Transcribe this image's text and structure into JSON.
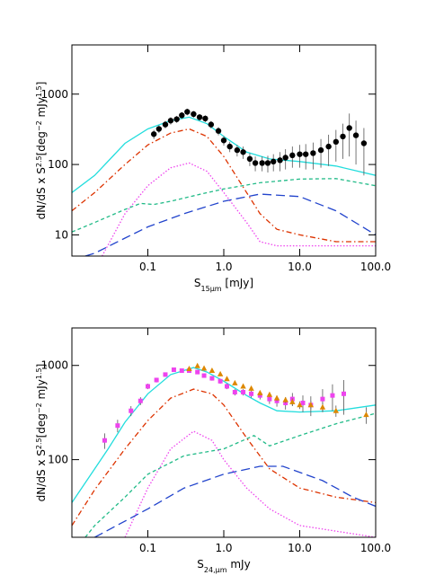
{
  "chart_data": [
    {
      "type": "line",
      "xlabel_parts": [
        {
          "text": "S"
        },
        {
          "text": "15μm",
          "sub": true
        },
        {
          "text": " [mJy]"
        }
      ],
      "ylabel_parts": [
        {
          "text": "dN/dS x S"
        },
        {
          "text": "2.5",
          "sup": true
        },
        {
          "text": "[deg"
        },
        {
          "text": "−2",
          "sup": true
        },
        {
          "text": " mJy"
        },
        {
          "text": "1.5",
          "sup": true
        },
        {
          "text": "]"
        }
      ],
      "xlog": true,
      "ylog": true,
      "xlim": [
        0.01,
        100
      ],
      "ylim": [
        5,
        5000
      ],
      "xticks": [
        0.1,
        {
          "value": 1,
          "label": "1.0"
        },
        {
          "value": 10,
          "label": "10.0"
        },
        {
          "value": 100,
          "label": "100.0"
        }
      ],
      "yticks": [
        10,
        100,
        1000
      ],
      "series": [
        {
          "color": "#22dddd",
          "style": "solid",
          "x": [
            0.01,
            0.02,
            0.05,
            0.1,
            0.2,
            0.35,
            0.6,
            1,
            2,
            4,
            10,
            30,
            100
          ],
          "values": [
            40,
            70,
            200,
            320,
            420,
            470,
            380,
            250,
            150,
            120,
            110,
            95,
            70
          ]
        },
        {
          "color": "#dd3300",
          "style": "dashdot",
          "x": [
            0.01,
            0.02,
            0.05,
            0.1,
            0.2,
            0.35,
            0.6,
            1,
            2,
            3,
            5,
            10,
            30,
            100
          ],
          "values": [
            22,
            40,
            100,
            190,
            280,
            320,
            250,
            130,
            40,
            20,
            12,
            10,
            8,
            8
          ]
        },
        {
          "color": "#ee44ee",
          "style": "dotted",
          "x": [
            0.025,
            0.05,
            0.1,
            0.2,
            0.35,
            0.6,
            1,
            2,
            3,
            5,
            20,
            100
          ],
          "values": [
            5,
            20,
            50,
            90,
            105,
            80,
            40,
            15,
            8,
            7,
            7,
            7
          ]
        },
        {
          "color": "#22bb88",
          "style": "dashed",
          "x": [
            0.01,
            0.02,
            0.05,
            0.08,
            0.12,
            0.2,
            0.5,
            1,
            3,
            10,
            30,
            100
          ],
          "values": [
            11,
            15,
            23,
            28,
            27,
            30,
            38,
            45,
            55,
            62,
            63,
            50
          ]
        },
        {
          "color": "#2244cc",
          "style": "longdash",
          "x": [
            0.015,
            0.02,
            0.05,
            0.1,
            0.3,
            1,
            3,
            10,
            30,
            100
          ],
          "values": [
            5,
            5.5,
            9,
            13,
            20,
            30,
            38,
            35,
            22,
            10
          ]
        },
        {
          "color": "#000000",
          "marker": "circle",
          "x": [
            0.12,
            0.14,
            0.17,
            0.2,
            0.24,
            0.28,
            0.33,
            0.4,
            0.48,
            0.57,
            0.68,
            0.85,
            1.0,
            1.2,
            1.5,
            1.8,
            2.2,
            2.6,
            3.2,
            3.8,
            4.5,
            5.5,
            6.5,
            8,
            10,
            12,
            15,
            19,
            24,
            30,
            37,
            45,
            55,
            70
          ],
          "values": [
            270,
            320,
            370,
            420,
            440,
            500,
            560,
            520,
            470,
            450,
            370,
            300,
            220,
            180,
            160,
            150,
            120,
            105,
            105,
            105,
            110,
            115,
            125,
            135,
            140,
            140,
            145,
            160,
            180,
            210,
            250,
            330,
            260,
            200
          ],
          "errors": [
            40,
            40,
            45,
            50,
            50,
            55,
            60,
            55,
            50,
            50,
            45,
            40,
            35,
            30,
            30,
            30,
            25,
            25,
            25,
            28,
            30,
            35,
            40,
            45,
            50,
            55,
            60,
            70,
            85,
            100,
            130,
            200,
            160,
            130
          ]
        }
      ]
    },
    {
      "type": "line",
      "xlabel_parts": [
        {
          "text": "S"
        },
        {
          "text": "24,μm",
          "sub": true
        },
        {
          "text": " mJy"
        }
      ],
      "ylabel_parts": [
        {
          "text": "dN/dS x S"
        },
        {
          "text": "2.5",
          "sup": true
        },
        {
          "text": "[deg"
        },
        {
          "text": "−2",
          "sup": true
        },
        {
          "text": " mJy"
        },
        {
          "text": "1.5",
          "sup": true
        },
        {
          "text": "]"
        }
      ],
      "xlog": true,
      "ylog": true,
      "xlim": [
        0.01,
        100
      ],
      "ylim": [
        15,
        2500
      ],
      "xticks": [
        0.1,
        {
          "value": 1,
          "label": "1.0"
        },
        {
          "value": 10,
          "label": "10.0"
        },
        {
          "value": 100,
          "label": "100.0"
        }
      ],
      "yticks": [
        100,
        1000
      ],
      "series": [
        {
          "color": "#22dddd",
          "style": "solid",
          "x": [
            0.01,
            0.02,
            0.03,
            0.05,
            0.1,
            0.2,
            0.4,
            0.6,
            1,
            2,
            3,
            5,
            10,
            30,
            100
          ],
          "values": [
            35,
            80,
            130,
            250,
            500,
            800,
            950,
            850,
            680,
            480,
            400,
            330,
            320,
            330,
            380
          ]
        },
        {
          "color": "#dd3300",
          "style": "dashdot",
          "x": [
            0.01,
            0.02,
            0.05,
            0.1,
            0.2,
            0.4,
            0.7,
            1,
            2,
            4,
            10,
            30,
            100
          ],
          "values": [
            20,
            48,
            130,
            260,
            450,
            560,
            500,
            380,
            170,
            80,
            50,
            40,
            35
          ]
        },
        {
          "color": "#ee44ee",
          "style": "dotted",
          "x": [
            0.05,
            0.1,
            0.2,
            0.4,
            0.7,
            1,
            2,
            4,
            10,
            100
          ],
          "values": [
            15,
            50,
            130,
            200,
            160,
            100,
            50,
            30,
            20,
            15
          ]
        },
        {
          "color": "#22bb88",
          "style": "dashed",
          "x": [
            0.015,
            0.02,
            0.05,
            0.1,
            0.3,
            1,
            2.5,
            4,
            10,
            30,
            100
          ],
          "values": [
            15,
            20,
            40,
            70,
            110,
            130,
            180,
            140,
            180,
            240,
            310
          ]
        },
        {
          "color": "#2244cc",
          "style": "longdash",
          "x": [
            0.02,
            0.1,
            0.3,
            1,
            3,
            6,
            20,
            50,
            100
          ],
          "values": [
            15,
            30,
            50,
            70,
            85,
            85,
            60,
            40,
            32
          ]
        },
        {
          "color": "#ee44ee",
          "marker": "square",
          "x": [
            0.027,
            0.04,
            0.06,
            0.08,
            0.1,
            0.13,
            0.17,
            0.22,
            0.28,
            0.35,
            0.45,
            0.55,
            0.7,
            0.9,
            1.1,
            1.4,
            1.8,
            2.3,
            3,
            4,
            5,
            6.5,
            8,
            11,
            14,
            20,
            27,
            38
          ],
          "values": [
            160,
            230,
            330,
            420,
            600,
            700,
            800,
            900,
            880,
            880,
            850,
            780,
            730,
            680,
            600,
            520,
            520,
            500,
            480,
            440,
            420,
            400,
            440,
            400,
            380,
            440,
            480,
            500
          ],
          "errors": [
            30,
            35,
            40,
            40,
            40,
            40,
            40,
            40,
            40,
            40,
            40,
            40,
            40,
            40,
            40,
            40,
            40,
            45,
            45,
            50,
            55,
            60,
            70,
            80,
            90,
            120,
            150,
            200
          ]
        },
        {
          "color": "#dd8800",
          "marker": "triangle",
          "x": [
            0.35,
            0.45,
            0.55,
            0.7,
            0.9,
            1.1,
            1.4,
            1.8,
            2.3,
            3,
            4,
            5,
            6.5,
            8,
            10,
            14,
            20,
            30,
            75
          ],
          "values": [
            920,
            990,
            930,
            880,
            810,
            720,
            650,
            600,
            570,
            510,
            490,
            450,
            430,
            410,
            380,
            380,
            360,
            330,
            300
          ],
          "errors": [
            30,
            30,
            30,
            30,
            30,
            30,
            30,
            30,
            30,
            30,
            30,
            30,
            30,
            35,
            35,
            40,
            40,
            45,
            60
          ]
        }
      ]
    }
  ]
}
